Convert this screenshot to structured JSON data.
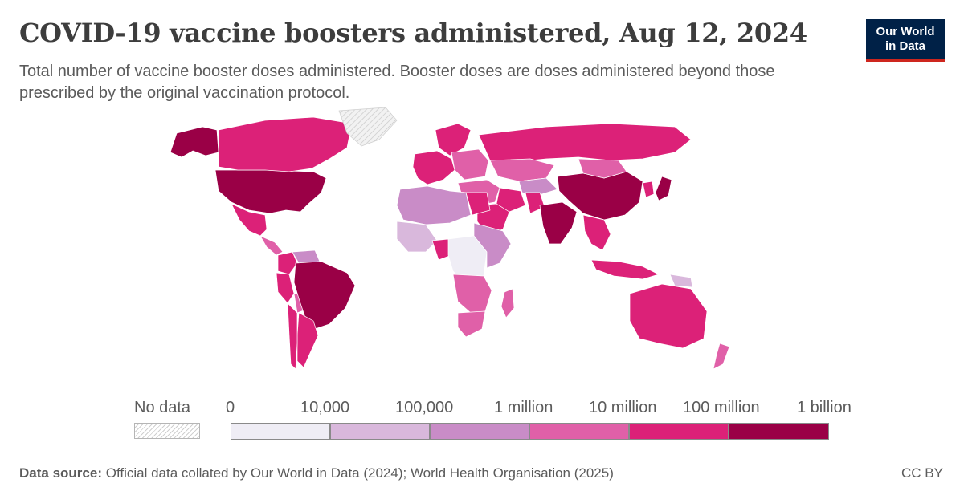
{
  "title": "COVID-19 vaccine boosters administered, Aug 12, 2024",
  "subtitle": "Total number of vaccine booster doses administered. Booster doses are doses administered beyond those prescribed by the original vaccination protocol.",
  "logo": {
    "line1": "Our World",
    "line2": "in Data"
  },
  "legend": {
    "no_data_label": "No data",
    "tick_labels": [
      "0",
      "10,000",
      "100,000",
      "1 million",
      "10 million",
      "100 million",
      "1 billion"
    ],
    "bin_colors": [
      "#efedf5",
      "#d9b8dc",
      "#c98cc7",
      "#e060a8",
      "#dc2178",
      "#9a0046"
    ],
    "no_data_color": "#e8e8e8"
  },
  "footer": {
    "source_label": "Data source:",
    "source_text": "Official data collated by Our World in Data (2024); World Health Organisation (2025)",
    "license": "CC BY"
  },
  "map_regions": [
    {
      "name": "United States",
      "bin": 5
    },
    {
      "name": "Canada",
      "bin": 4
    },
    {
      "name": "Alaska",
      "bin": 5
    },
    {
      "name": "Greenland",
      "bin": -1
    },
    {
      "name": "Mexico",
      "bin": 4
    },
    {
      "name": "Central America",
      "bin": 3
    },
    {
      "name": "Colombia",
      "bin": 4
    },
    {
      "name": "Venezuela",
      "bin": 2
    },
    {
      "name": "Peru",
      "bin": 4
    },
    {
      "name": "Bolivia",
      "bin": 3
    },
    {
      "name": "Brazil",
      "bin": 5
    },
    {
      "name": "Argentina",
      "bin": 4
    },
    {
      "name": "Chile",
      "bin": 4
    },
    {
      "name": "Western Europe",
      "bin": 4
    },
    {
      "name": "Scandinavia",
      "bin": 4
    },
    {
      "name": "Eastern Europe",
      "bin": 3
    },
    {
      "name": "Russia",
      "bin": 4
    },
    {
      "name": "Kazakhstan",
      "bin": 3
    },
    {
      "name": "Central Asia",
      "bin": 2
    },
    {
      "name": "Middle East",
      "bin": 3
    },
    {
      "name": "Saudi Arabia",
      "bin": 4
    },
    {
      "name": "Iran",
      "bin": 4
    },
    {
      "name": "Pakistan",
      "bin": 4
    },
    {
      "name": "India",
      "bin": 5
    },
    {
      "name": "China",
      "bin": 5
    },
    {
      "name": "Mongolia",
      "bin": 3
    },
    {
      "name": "Japan",
      "bin": 5
    },
    {
      "name": "Korea",
      "bin": 4
    },
    {
      "name": "Southeast Asia",
      "bin": 4
    },
    {
      "name": "Indonesia",
      "bin": 4
    },
    {
      "name": "Papua New Guinea",
      "bin": 1
    },
    {
      "name": "Australia",
      "bin": 4
    },
    {
      "name": "New Zealand",
      "bin": 3
    },
    {
      "name": "North Africa",
      "bin": 2
    },
    {
      "name": "Egypt",
      "bin": 4
    },
    {
      "name": "West Africa",
      "bin": 1
    },
    {
      "name": "Nigeria",
      "bin": 4
    },
    {
      "name": "Central Africa",
      "bin": 0
    },
    {
      "name": "East Africa",
      "bin": 2
    },
    {
      "name": "Southern Africa",
      "bin": 3
    },
    {
      "name": "South Africa",
      "bin": 3
    },
    {
      "name": "Madagascar",
      "bin": 3
    }
  ]
}
